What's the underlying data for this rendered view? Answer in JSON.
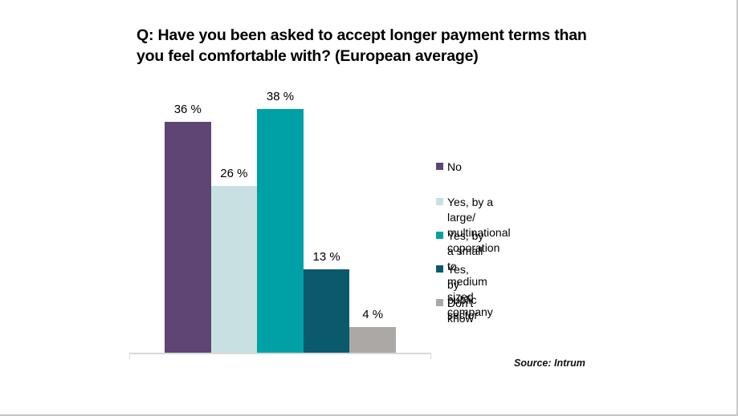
{
  "page": {
    "background": "#ffffff",
    "frame_border_color": "#c9c9c9"
  },
  "title": "Q: Have you been asked to accept longer payment terms than\nyou feel comfortable with? (European average)",
  "source_note": "Source: Intrum",
  "chart_data": {
    "type": "bar",
    "title": "Q: Have you been asked to accept longer payment terms than you feel comfortable with? (European average)",
    "categories": [
      "No",
      "Yes, by a large/ multinational coporation",
      "Yes, by a small to medium sized company",
      "Yes, by public sector",
      "Don't know"
    ],
    "values": [
      36,
      26,
      38,
      13,
      4
    ],
    "value_labels": [
      "36 %",
      "26 %",
      "38 %",
      "13 %",
      "4 %"
    ],
    "colors": [
      "#5E4573",
      "#C9E0E2",
      "#00A0A7",
      "#0A5A6C",
      "#ACA8A5"
    ],
    "ylim": [
      0,
      40
    ],
    "grid": false,
    "legend_position": "right",
    "legend": [
      {
        "label": "No",
        "color": "#5E4573"
      },
      {
        "label": "Yes, by a large/\nmultinational coporation",
        "color": "#C9E0E2"
      },
      {
        "label": "Yes, by a small to medium\nsized company",
        "color": "#00A0A7"
      },
      {
        "label": "Yes, by public sector",
        "color": "#0A5A6C"
      },
      {
        "label": "Don't know",
        "color": "#ACA8A5"
      }
    ],
    "axis_line_color": "#d8d8d8"
  }
}
